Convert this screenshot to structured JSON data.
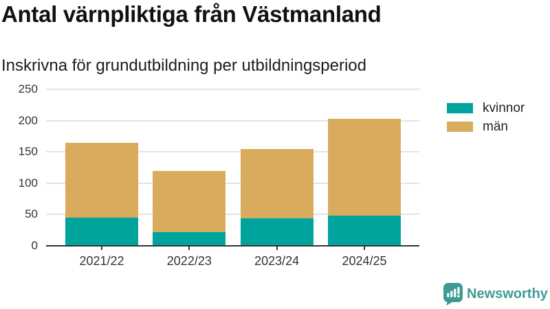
{
  "header": {
    "title": "Antal värnpliktiga från Västmanland",
    "subtitle": "Inskrivna för grundutbildning per utbildningsperiod"
  },
  "chart_data": {
    "type": "bar",
    "stacked": true,
    "title": "Antal värnpliktiga från Västmanland",
    "subtitle": "Inskrivna för grundutbildning per utbildningsperiod",
    "categories": [
      "2021/22",
      "2022/23",
      "2023/24",
      "2024/25"
    ],
    "series": [
      {
        "name": "kvinnor",
        "color": "#00a49c",
        "values": [
          45,
          22,
          44,
          48
        ]
      },
      {
        "name": "män",
        "color": "#d9ab5c",
        "values": [
          119,
          97,
          111,
          155
        ]
      }
    ],
    "stack_totals": [
      164,
      119,
      155,
      203
    ],
    "xlabel": "",
    "ylabel": "",
    "ylim": [
      0,
      250
    ],
    "yticks": [
      0,
      50,
      100,
      150,
      200,
      250
    ],
    "grid": true,
    "legend_position": "right"
  },
  "colors": {
    "kvinnor": "#00a49c",
    "man": "#d9ab5c",
    "axis_line": "#333333",
    "gridline": "#e3e3e3",
    "title_text": "#111111",
    "tick_text": "#333333",
    "brand": "#3e9b94"
  },
  "footer": {
    "brand_name": "Newsworthy"
  }
}
